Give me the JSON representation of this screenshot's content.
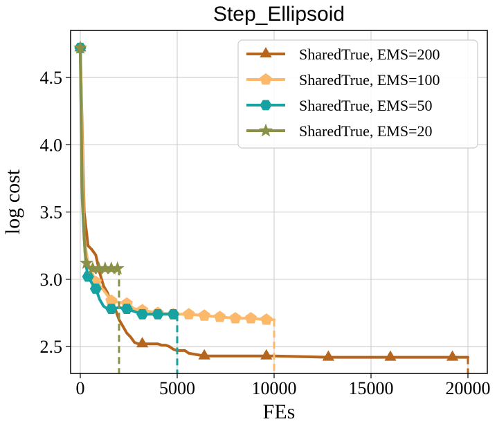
{
  "chart_data": {
    "type": "line",
    "title": "Step_Ellipsoid",
    "xlabel": "FEs",
    "ylabel": "log cost",
    "xlim": [
      -500,
      21000
    ],
    "ylim": [
      2.3,
      4.85
    ],
    "xticks": [
      0,
      5000,
      10000,
      15000,
      20000
    ],
    "xtick_labels": [
      "0",
      "5000",
      "10000",
      "15000",
      "20000"
    ],
    "yticks": [
      2.5,
      3.0,
      3.5,
      4.0,
      4.5
    ],
    "ytick_labels": [
      "2.5",
      "3.0",
      "3.5",
      "4.0",
      "4.5"
    ],
    "grid": true,
    "legend_position": "top-right",
    "series": [
      {
        "name": "SharedTrue, EMS=200",
        "color": "#b5651d",
        "marker": "triangle",
        "x": [
          0,
          200,
          400,
          600,
          800,
          1000,
          1200,
          1400,
          1600,
          1800,
          2000,
          2200,
          2400,
          2600,
          2800,
          3000,
          3200,
          3600,
          4000,
          4200,
          4400,
          4600,
          4800,
          5000,
          5400,
          5600,
          6000,
          6400,
          7000,
          8000,
          9000,
          9600,
          10000,
          12800,
          16000,
          19200,
          20000
        ],
        "y": [
          4.72,
          3.5,
          3.25,
          3.22,
          3.18,
          3.05,
          2.95,
          2.9,
          2.82,
          2.78,
          2.7,
          2.65,
          2.6,
          2.57,
          2.53,
          2.52,
          2.52,
          2.52,
          2.52,
          2.51,
          2.51,
          2.5,
          2.48,
          2.47,
          2.47,
          2.45,
          2.44,
          2.43,
          2.43,
          2.43,
          2.43,
          2.43,
          2.43,
          2.42,
          2.42,
          2.42,
          2.42
        ],
        "marker_x": [
          0,
          3200,
          6400,
          9600,
          12800,
          16000,
          19200
        ],
        "end_x": 20000,
        "end_y": 2.42
      },
      {
        "name": "SharedTrue, EMS=100",
        "color": "#fdb96b",
        "marker": "pentagon",
        "x": [
          0,
          200,
          400,
          600,
          800,
          1000,
          1200,
          1400,
          1600,
          2000,
          2400,
          2800,
          3200,
          4000,
          4800,
          5600,
          6400,
          7200,
          8000,
          8800,
          9600,
          10000
        ],
        "y": [
          4.72,
          3.3,
          3.12,
          3.05,
          2.98,
          2.95,
          2.92,
          2.88,
          2.84,
          2.83,
          2.82,
          2.78,
          2.77,
          2.75,
          2.74,
          2.74,
          2.73,
          2.72,
          2.71,
          2.71,
          2.7,
          2.7
        ],
        "marker_x": [
          0,
          800,
          1600,
          2400,
          3200,
          4000,
          4800,
          5600,
          6400,
          7200,
          8000,
          8800,
          9600
        ],
        "end_x": 10000,
        "end_y": 2.7
      },
      {
        "name": "SharedTrue, EMS=50",
        "color": "#17a2a2",
        "marker": "hexagon",
        "x": [
          0,
          100,
          200,
          300,
          400,
          600,
          800,
          1000,
          1200,
          1400,
          1600,
          2000,
          2400,
          2800,
          3200,
          3600,
          4000,
          4400,
          4800,
          5000
        ],
        "y": [
          4.72,
          3.6,
          3.3,
          3.1,
          3.02,
          2.97,
          2.93,
          2.85,
          2.8,
          2.78,
          2.78,
          2.79,
          2.78,
          2.76,
          2.74,
          2.74,
          2.74,
          2.74,
          2.74,
          2.74
        ],
        "marker_x": [
          0,
          400,
          800,
          1600,
          2400,
          3200,
          4000,
          4800
        ],
        "end_x": 5000,
        "end_y": 2.74
      },
      {
        "name": "SharedTrue, EMS=20",
        "color": "#8a9147",
        "marker": "star",
        "x": [
          0,
          80,
          160,
          240,
          320,
          400,
          480,
          640,
          800,
          960,
          1120,
          1280,
          1440,
          1600,
          1760,
          1920,
          2000
        ],
        "y": [
          4.72,
          3.7,
          3.45,
          3.2,
          3.12,
          3.1,
          3.08,
          3.08,
          3.08,
          3.08,
          3.08,
          3.08,
          3.08,
          3.08,
          3.08,
          3.08,
          3.08
        ],
        "marker_x": [
          0,
          320,
          640,
          960,
          1280,
          1600,
          1920
        ],
        "end_x": 2000,
        "end_y": 3.08
      }
    ]
  }
}
